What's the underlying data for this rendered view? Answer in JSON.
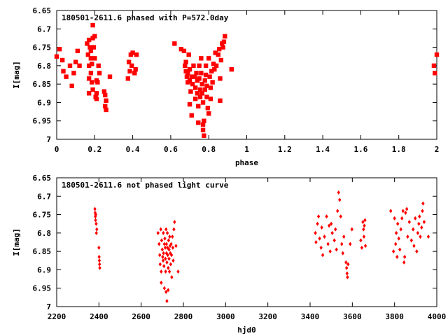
{
  "chart_data": [
    {
      "type": "scatter",
      "title": "180501-2611.6 phased with P=572.0day",
      "xlabel": "phase",
      "ylabel": "I[mag]",
      "xlim": [
        0,
        2
      ],
      "ylim": [
        6.65,
        7.0
      ],
      "y_inverted": true,
      "grid": false,
      "marker_color": "#ff0000",
      "xticks": [
        "0",
        "0.2",
        "0.4",
        "0.6",
        "0.8",
        "1",
        "1.2",
        "1.4",
        "1.6",
        "1.8",
        "2"
      ],
      "yticks": [
        "6.65",
        "6.7",
        "6.75",
        "6.8",
        "6.85",
        "6.9",
        "6.95",
        "7"
      ],
      "series": [
        {
          "points": [
            [
              0.0,
              6.775
            ],
            [
              0.015,
              6.755
            ],
            [
              0.03,
              6.785
            ],
            [
              0.035,
              6.815
            ],
            [
              0.05,
              6.83
            ],
            [
              0.07,
              6.8
            ],
            [
              0.08,
              6.855
            ],
            [
              0.09,
              6.82
            ],
            [
              0.1,
              6.79
            ],
            [
              0.11,
              6.76
            ],
            [
              0.12,
              6.8
            ],
            [
              0.16,
              6.74
            ],
            [
              0.165,
              6.77
            ],
            [
              0.17,
              6.8
            ],
            [
              0.17,
              6.835
            ],
            [
              0.17,
              6.875
            ],
            [
              0.17,
              6.73
            ],
            [
              0.175,
              6.75
            ],
            [
              0.18,
              6.76
            ],
            [
              0.18,
              6.78
            ],
            [
              0.185,
              6.795
            ],
            [
              0.18,
              6.82
            ],
            [
              0.185,
              6.845
            ],
            [
              0.19,
              6.865
            ],
            [
              0.19,
              6.725
            ],
            [
              0.195,
              6.75
            ],
            [
              0.19,
              6.69
            ],
            [
              0.2,
              6.72
            ],
            [
              0.2,
              6.78
            ],
            [
              0.205,
              6.885
            ],
            [
              0.21,
              6.89
            ],
            [
              0.21,
              6.875
            ],
            [
              0.21,
              6.84
            ],
            [
              0.215,
              6.845
            ],
            [
              0.22,
              6.8
            ],
            [
              0.225,
              6.82
            ],
            [
              0.25,
              6.87
            ],
            [
              0.255,
              6.88
            ],
            [
              0.255,
              6.91
            ],
            [
              0.26,
              6.92
            ],
            [
              0.26,
              6.895
            ],
            [
              0.28,
              6.83
            ],
            [
              0.375,
              6.835
            ],
            [
              0.38,
              6.79
            ],
            [
              0.385,
              6.815
            ],
            [
              0.39,
              6.77
            ],
            [
              0.395,
              6.8
            ],
            [
              0.4,
              6.765
            ],
            [
              0.41,
              6.82
            ],
            [
              0.415,
              6.81
            ],
            [
              0.42,
              6.77
            ],
            [
              0.62,
              6.74
            ],
            [
              0.655,
              6.755
            ],
            [
              0.67,
              6.76
            ],
            [
              0.675,
              6.8
            ],
            [
              0.68,
              6.815
            ],
            [
              0.68,
              6.79
            ],
            [
              0.685,
              6.83
            ],
            [
              0.69,
              6.845
            ],
            [
              0.69,
              6.82
            ],
            [
              0.695,
              6.77
            ],
            [
              0.7,
              6.81
            ],
            [
              0.7,
              6.84
            ],
            [
              0.705,
              6.87
            ],
            [
              0.7,
              6.905
            ],
            [
              0.71,
              6.935
            ],
            [
              0.71,
              6.83
            ],
            [
              0.715,
              6.85
            ],
            [
              0.72,
              6.8
            ],
            [
              0.725,
              6.83
            ],
            [
              0.73,
              6.86
            ],
            [
              0.73,
              6.89
            ],
            [
              0.735,
              6.82
            ],
            [
              0.74,
              6.84
            ],
            [
              0.74,
              6.875
            ],
            [
              0.745,
              6.91
            ],
            [
              0.745,
              6.955
            ],
            [
              0.75,
              6.8
            ],
            [
              0.75,
              6.835
            ],
            [
              0.755,
              6.865
            ],
            [
              0.755,
              6.885
            ],
            [
              0.76,
              6.78
            ],
            [
              0.76,
              6.82
            ],
            [
              0.765,
              6.85
            ],
            [
              0.765,
              6.875
            ],
            [
              0.77,
              6.9
            ],
            [
              0.77,
              6.96
            ],
            [
              0.77,
              6.975
            ],
            [
              0.775,
              6.99
            ],
            [
              0.775,
              6.95
            ],
            [
              0.78,
              6.84
            ],
            [
              0.78,
              6.865
            ],
            [
              0.785,
              6.8
            ],
            [
              0.785,
              6.825
            ],
            [
              0.79,
              6.855
            ],
            [
              0.79,
              6.885
            ],
            [
              0.795,
              6.915
            ],
            [
              0.8,
              6.93
            ],
            [
              0.8,
              6.78
            ],
            [
              0.805,
              6.83
            ],
            [
              0.81,
              6.86
            ],
            [
              0.81,
              6.89
            ],
            [
              0.815,
              6.815
            ],
            [
              0.82,
              6.845
            ],
            [
              0.825,
              6.795
            ],
            [
              0.83,
              6.81
            ],
            [
              0.835,
              6.765
            ],
            [
              0.84,
              6.8
            ],
            [
              0.85,
              6.77
            ],
            [
              0.855,
              6.755
            ],
            [
              0.86,
              6.835
            ],
            [
              0.865,
              6.785
            ],
            [
              0.87,
              6.74
            ],
            [
              0.875,
              6.75
            ],
            [
              0.88,
              6.735
            ],
            [
              0.885,
              6.72
            ],
            [
              0.86,
              6.895
            ],
            [
              0.92,
              6.81
            ],
            [
              1.985,
              6.8
            ],
            [
              1.99,
              6.82
            ],
            [
              2.0,
              6.77
            ]
          ]
        }
      ]
    },
    {
      "type": "scatter",
      "title": "180501-2611.6 not phased light curve",
      "xlabel": "hjd0",
      "ylabel": "I[mag]",
      "xlim": [
        2200,
        4000
      ],
      "ylim": [
        6.65,
        7.0
      ],
      "y_inverted": true,
      "grid": false,
      "marker_color": "#ff0000",
      "xticks": [
        "2200",
        "2400",
        "2600",
        "2800",
        "3000",
        "3200",
        "3400",
        "3600",
        "3800",
        "4000"
      ],
      "yticks": [
        "6.65",
        "6.7",
        "6.75",
        "6.8",
        "6.85",
        "6.9",
        "6.95",
        "7"
      ],
      "series": [
        {
          "points": [
            [
              2381,
              6.735
            ],
            [
              2382,
              6.745
            ],
            [
              2383,
              6.755
            ],
            [
              2384,
              6.765
            ],
            [
              2385,
              6.75
            ],
            [
              2387,
              6.775
            ],
            [
              2390,
              6.79
            ],
            [
              2388,
              6.8
            ],
            [
              2400,
              6.84
            ],
            [
              2401,
              6.865
            ],
            [
              2402,
              6.875
            ],
            [
              2403,
              6.885
            ],
            [
              2404,
              6.895
            ],
            [
              2680,
              6.8
            ],
            [
              2685,
              6.83
            ],
            [
              2688,
              6.86
            ],
            [
              2690,
              6.885
            ],
            [
              2693,
              6.79
            ],
            [
              2695,
              6.905
            ],
            [
              2695,
              6.935
            ],
            [
              2697,
              6.82
            ],
            [
              2700,
              6.845
            ],
            [
              2702,
              6.865
            ],
            [
              2704,
              6.875
            ],
            [
              2705,
              6.8
            ],
            [
              2706,
              6.855
            ],
            [
              2708,
              6.89
            ],
            [
              2710,
              6.83
            ],
            [
              2710,
              6.95
            ],
            [
              2712,
              6.815
            ],
            [
              2714,
              6.84
            ],
            [
              2715,
              6.87
            ],
            [
              2716,
              6.905
            ],
            [
              2718,
              6.79
            ],
            [
              2718,
              6.96
            ],
            [
              2720,
              6.83
            ],
            [
              2720,
              6.855
            ],
            [
              2722,
              6.88
            ],
            [
              2722,
              6.985
            ],
            [
              2724,
              6.8
            ],
            [
              2725,
              6.84
            ],
            [
              2726,
              6.86
            ],
            [
              2728,
              6.895
            ],
            [
              2728,
              6.955
            ],
            [
              2730,
              6.82
            ],
            [
              2732,
              6.845
            ],
            [
              2732,
              6.87
            ],
            [
              2734,
              6.905
            ],
            [
              2735,
              6.81
            ],
            [
              2737,
              6.835
            ],
            [
              2738,
              6.855
            ],
            [
              2740,
              6.885
            ],
            [
              2742,
              6.83
            ],
            [
              2744,
              6.86
            ],
            [
              2745,
              6.92
            ],
            [
              2748,
              6.81
            ],
            [
              2750,
              6.84
            ],
            [
              2752,
              6.875
            ],
            [
              2755,
              6.79
            ],
            [
              2758,
              6.77
            ],
            [
              2765,
              6.835
            ],
            [
              2775,
              6.905
            ],
            [
              3425,
              6.8
            ],
            [
              3428,
              6.825
            ],
            [
              3435,
              6.775
            ],
            [
              3440,
              6.755
            ],
            [
              3445,
              6.815
            ],
            [
              3452,
              6.84
            ],
            [
              3455,
              6.785
            ],
            [
              3460,
              6.86
            ],
            [
              3468,
              6.81
            ],
            [
              3478,
              6.755
            ],
            [
              3485,
              6.83
            ],
            [
              3490,
              6.78
            ],
            [
              3495,
              6.85
            ],
            [
              3500,
              6.775
            ],
            [
              3505,
              6.8
            ],
            [
              3515,
              6.82
            ],
            [
              3520,
              6.79
            ],
            [
              3525,
              6.845
            ],
            [
              3530,
              6.74
            ],
            [
              3535,
              6.69
            ],
            [
              3540,
              6.71
            ],
            [
              3545,
              6.755
            ],
            [
              3550,
              6.83
            ],
            [
              3555,
              6.855
            ],
            [
              3560,
              6.81
            ],
            [
              3570,
              6.88
            ],
            [
              3573,
              6.895
            ],
            [
              3575,
              6.91
            ],
            [
              3577,
              6.92
            ],
            [
              3580,
              6.885
            ],
            [
              3590,
              6.83
            ],
            [
              3598,
              6.79
            ],
            [
              3640,
              6.82
            ],
            [
              3645,
              6.84
            ],
            [
              3650,
              6.77
            ],
            [
              3653,
              6.79
            ],
            [
              3655,
              6.81
            ],
            [
              3657,
              6.78
            ],
            [
              3660,
              6.765
            ],
            [
              3662,
              6.835
            ],
            [
              3782,
              6.74
            ],
            [
              3795,
              6.85
            ],
            [
              3800,
              6.76
            ],
            [
              3805,
              6.83
            ],
            [
              3808,
              6.8
            ],
            [
              3812,
              6.865
            ],
            [
              3815,
              6.775
            ],
            [
              3820,
              6.815
            ],
            [
              3825,
              6.845
            ],
            [
              3830,
              6.79
            ],
            [
              3835,
              6.76
            ],
            [
              3840,
              6.74
            ],
            [
              3845,
              6.88
            ],
            [
              3848,
              6.865
            ],
            [
              3852,
              6.745
            ],
            [
              3858,
              6.735
            ],
            [
              3862,
              6.81
            ],
            [
              3870,
              6.77
            ],
            [
              3880,
              6.82
            ],
            [
              3888,
              6.79
            ],
            [
              3892,
              6.835
            ],
            [
              3898,
              6.76
            ],
            [
              3905,
              6.85
            ],
            [
              3910,
              6.8
            ],
            [
              3915,
              6.775
            ],
            [
              3918,
              6.755
            ],
            [
              3922,
              6.81
            ],
            [
              3928,
              6.785
            ],
            [
              3932,
              6.74
            ],
            [
              3935,
              6.72
            ],
            [
              3940,
              6.77
            ],
            [
              3960,
              6.81
            ]
          ]
        }
      ]
    }
  ]
}
